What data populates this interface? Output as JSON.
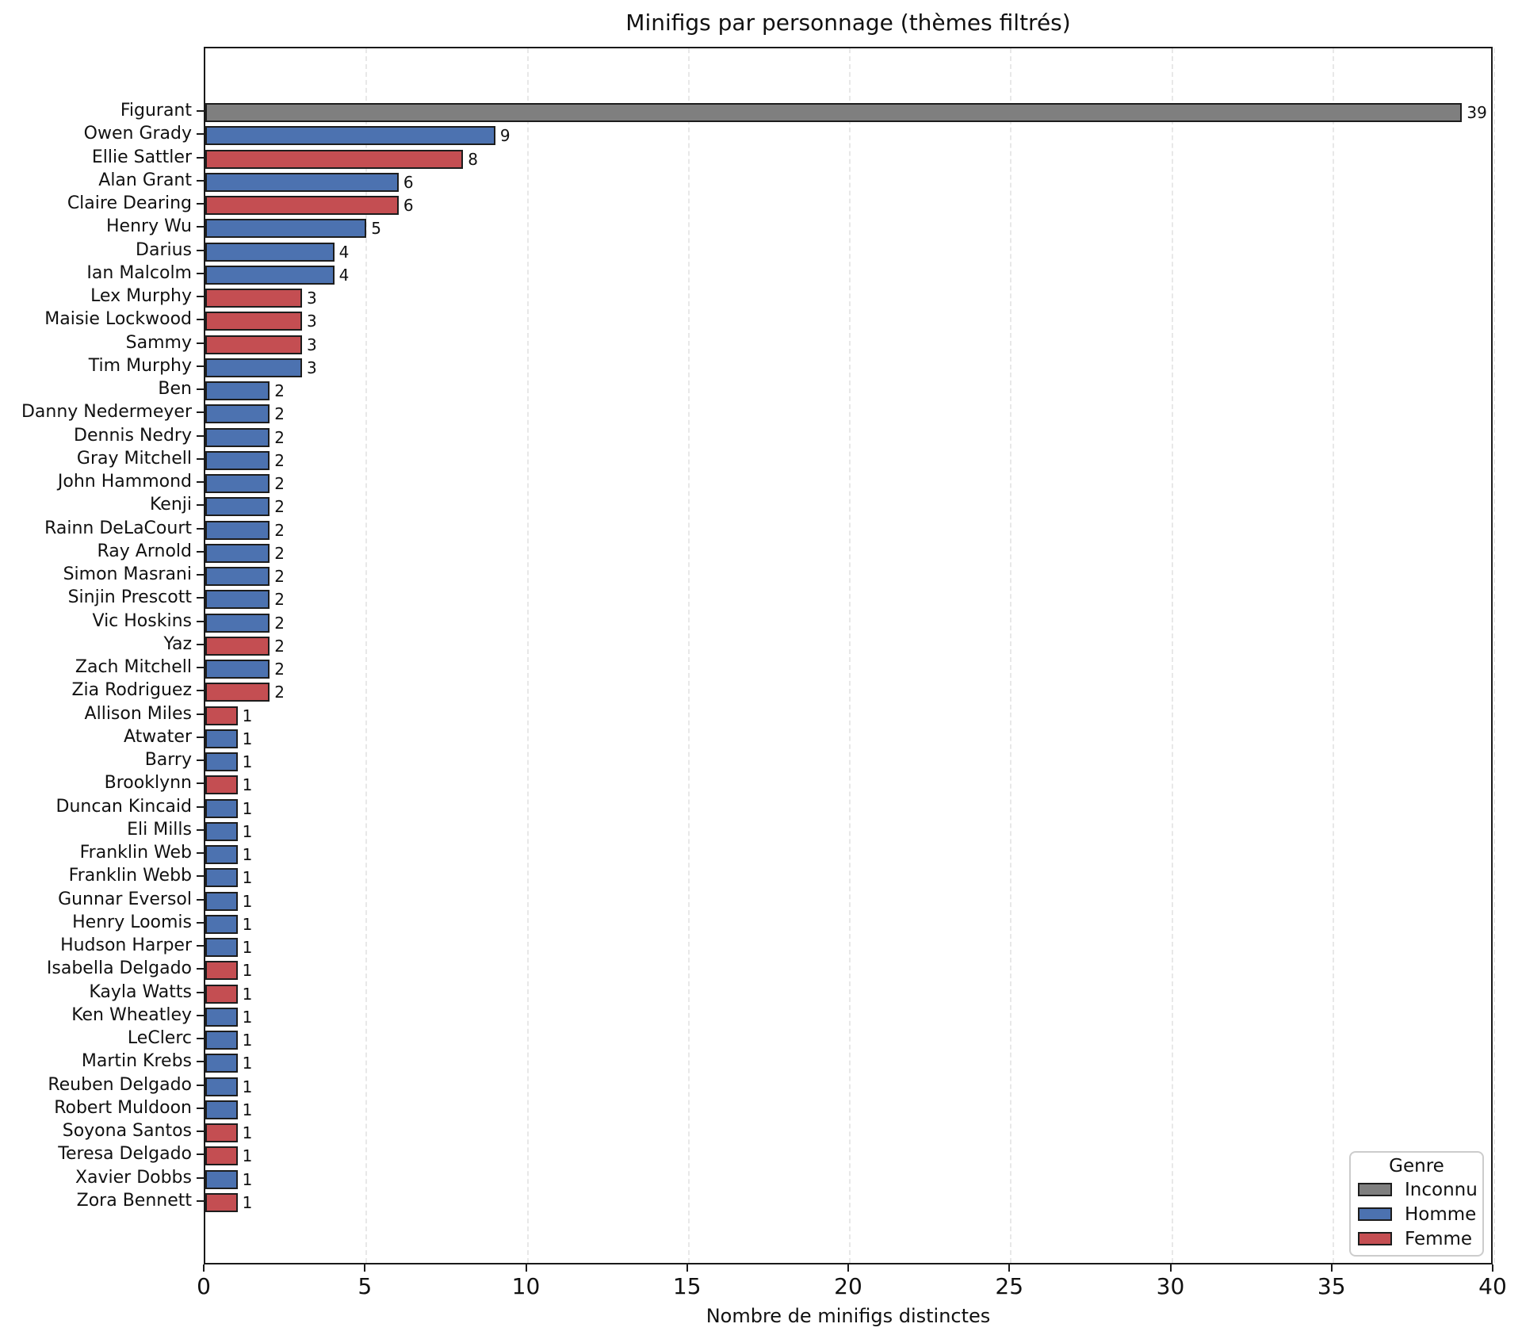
{
  "figure": {
    "title": "Minifigs par personnage (thèmes filtrés)",
    "xlabel": "Nombre de minifigs distinctes"
  },
  "legend": {
    "title": "Genre",
    "entries": [
      {
        "label": "Inconnu",
        "genre": "inconnu",
        "color": "#7f7f7f"
      },
      {
        "label": "Homme",
        "genre": "homme",
        "color": "#4c72b0"
      },
      {
        "label": "Femme",
        "genre": "femme",
        "color": "#c44e52"
      }
    ]
  },
  "chart_data": {
    "type": "bar",
    "orientation": "horizontal",
    "title": "Minifigs par personnage (thèmes filtrés)",
    "xlabel": "Nombre de minifigs distinctes",
    "ylabel": "",
    "xlim": [
      0,
      40
    ],
    "xticks": [
      0,
      5,
      10,
      15,
      20,
      25,
      30,
      35,
      40
    ],
    "grid": "vertical-dashed",
    "bar_value_labels": true,
    "legend_title": "Genre",
    "legend_position": "lower-right",
    "colors": {
      "inconnu": "#7f7f7f",
      "homme": "#4c72b0",
      "femme": "#c44e52"
    },
    "categories": [
      "Figurant",
      "Owen Grady",
      "Ellie Sattler",
      "Alan Grant",
      "Claire Dearing",
      "Henry Wu",
      "Darius",
      "Ian Malcolm",
      "Lex Murphy",
      "Maisie Lockwood",
      "Sammy",
      "Tim Murphy",
      "Ben",
      "Danny Nedermeyer",
      "Dennis Nedry",
      "Gray Mitchell",
      "John Hammond",
      "Kenji",
      "Rainn DeLaCourt",
      "Ray Arnold",
      "Simon Masrani",
      "Sinjin Prescott",
      "Vic Hoskins",
      "Yaz",
      "Zach Mitchell",
      "Zia Rodriguez",
      "Allison Miles",
      "Atwater",
      "Barry",
      "Brooklynn",
      "Duncan Kincaid",
      "Eli Mills",
      "Franklin Web",
      "Franklin Webb",
      "Gunnar Eversol",
      "Henry Loomis",
      "Hudson Harper",
      "Isabella Delgado",
      "Kayla Watts",
      "Ken Wheatley",
      "LeClerc",
      "Martin Krebs",
      "Reuben Delgado",
      "Robert Muldoon",
      "Soyona Santos",
      "Teresa Delgado",
      "Xavier Dobbs",
      "Zora Bennett"
    ],
    "values": [
      39,
      9,
      8,
      6,
      6,
      5,
      4,
      4,
      3,
      3,
      3,
      3,
      2,
      2,
      2,
      2,
      2,
      2,
      2,
      2,
      2,
      2,
      2,
      2,
      2,
      2,
      1,
      1,
      1,
      1,
      1,
      1,
      1,
      1,
      1,
      1,
      1,
      1,
      1,
      1,
      1,
      1,
      1,
      1,
      1,
      1,
      1,
      1
    ],
    "genres": [
      "inconnu",
      "homme",
      "femme",
      "homme",
      "femme",
      "homme",
      "homme",
      "homme",
      "femme",
      "femme",
      "femme",
      "homme",
      "homme",
      "homme",
      "homme",
      "homme",
      "homme",
      "homme",
      "homme",
      "homme",
      "homme",
      "homme",
      "homme",
      "femme",
      "homme",
      "femme",
      "femme",
      "homme",
      "homme",
      "femme",
      "homme",
      "homme",
      "homme",
      "homme",
      "homme",
      "homme",
      "homme",
      "femme",
      "femme",
      "homme",
      "homme",
      "homme",
      "homme",
      "homme",
      "femme",
      "femme",
      "homme",
      "femme"
    ]
  }
}
